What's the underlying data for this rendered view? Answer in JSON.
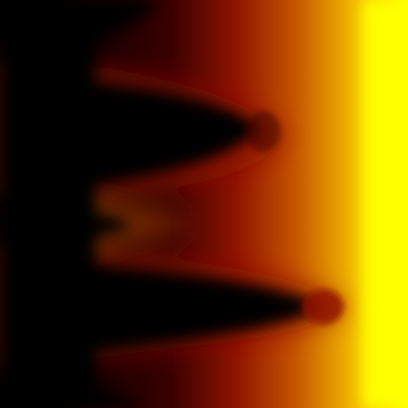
{
  "image": {
    "kind": "abstract-heat-gradient",
    "colormap": "black-red-orange-yellow",
    "palette": {
      "black": "#000000",
      "dark_red": "#3a0000",
      "red": "#8f1400",
      "deep_orange": "#c45300",
      "orange": "#de8a00",
      "amber": "#f0b400",
      "yellow": "#ffff00"
    }
  }
}
